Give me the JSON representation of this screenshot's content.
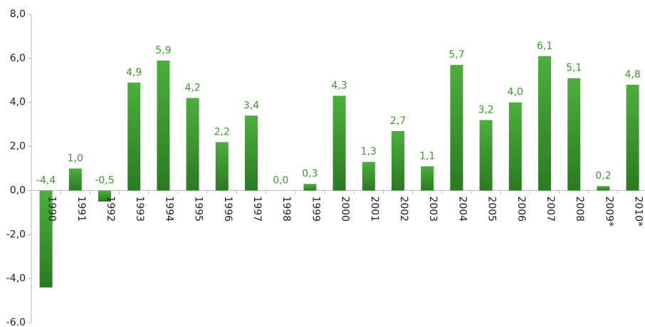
{
  "chart_data": {
    "type": "bar",
    "categories": [
      "1990",
      "1991",
      "1992",
      "1993",
      "1994",
      "1995",
      "1996",
      "1997",
      "1998",
      "1999",
      "2000",
      "2001",
      "2002",
      "2003",
      "2004",
      "2005",
      "2006",
      "2007",
      "2008",
      "2009*",
      "2010*"
    ],
    "values": [
      -4.4,
      1.0,
      -0.5,
      4.9,
      5.9,
      4.2,
      2.2,
      3.4,
      0.0,
      0.3,
      4.3,
      1.3,
      2.7,
      1.1,
      5.7,
      3.2,
      4.0,
      6.1,
      5.1,
      0.2,
      4.8
    ],
    "value_labels": [
      "-4,4",
      "1,0",
      "-0,5",
      "4,9",
      "5,9",
      "4,2",
      "2,2",
      "3,4",
      "0,0",
      "0,3",
      "4,3",
      "1,3",
      "2,7",
      "1,1",
      "5,7",
      "3,2",
      "4,0",
      "6,1",
      "5,1",
      "0,2",
      "4,8"
    ],
    "color": "#3a9a2a",
    "ylim": [
      -6,
      8
    ],
    "yticks": [
      {
        "value": -6,
        "label": "-6.0"
      },
      {
        "value": -4,
        "label": "-4,0"
      },
      {
        "value": -2,
        "label": "-2,0"
      },
      {
        "value": 0,
        "label": "0,0"
      },
      {
        "value": 2,
        "label": "2,0"
      },
      {
        "value": 4,
        "label": "4,0"
      },
      {
        "value": 6,
        "label": "6,0"
      },
      {
        "value": 8,
        "label": "8,0"
      }
    ],
    "grid": false
  }
}
